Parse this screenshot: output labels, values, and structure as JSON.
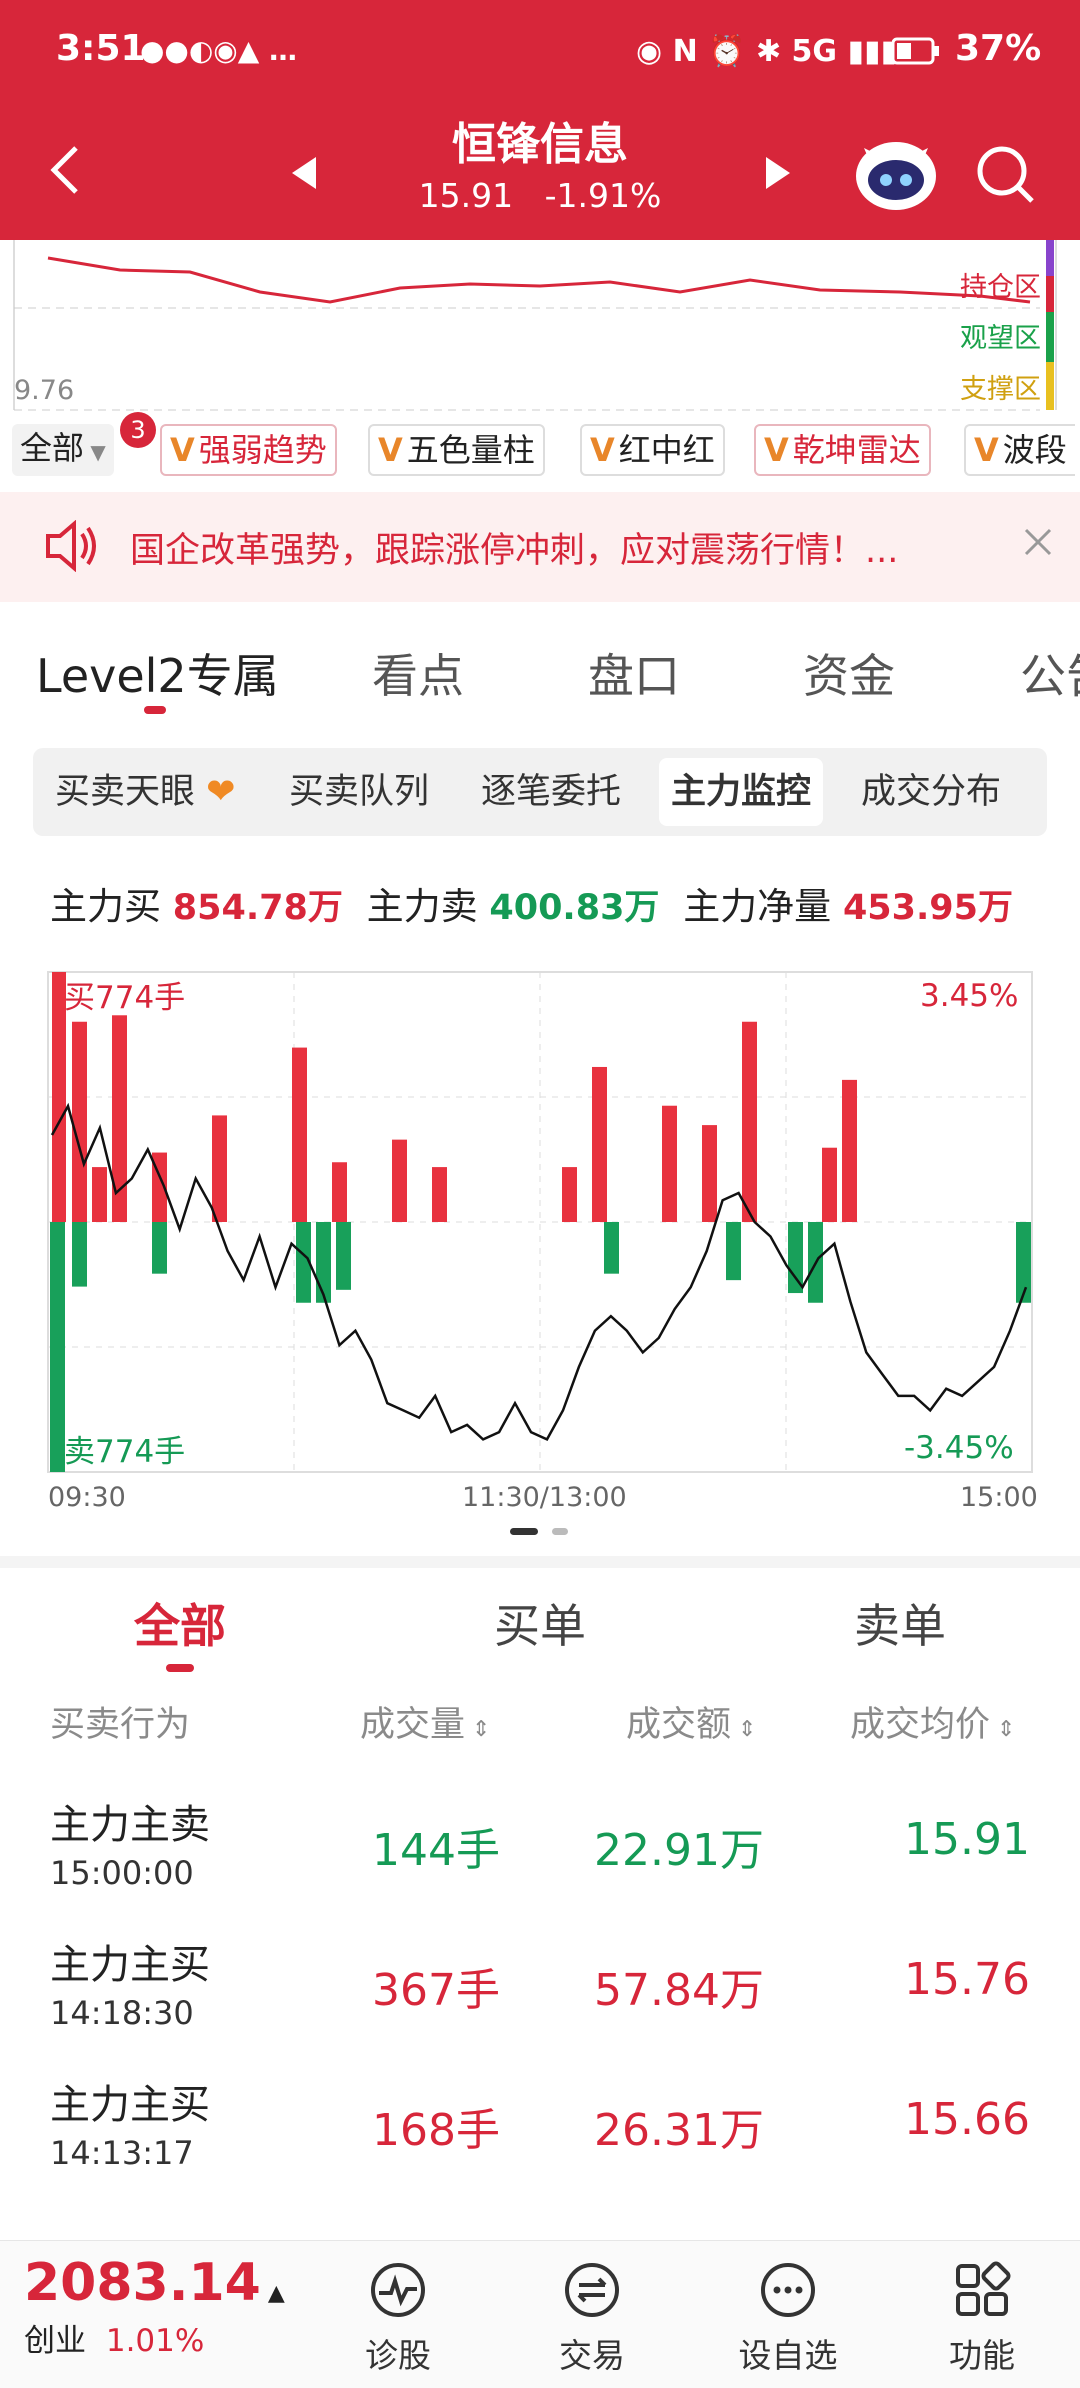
{
  "status_bar": {
    "time": "3:51",
    "battery": "37%"
  },
  "header": {
    "title": "恒锋信息",
    "price": "15.91",
    "change": "-1.91%"
  },
  "top_chart": {
    "low_label": "9.76",
    "zones": [
      "持仓区",
      "观望区",
      "支撑区"
    ]
  },
  "indicators": {
    "all_label": "全部",
    "badge": "3",
    "chips": [
      "强弱趋势",
      "五色量柱",
      "红中红",
      "乾坤雷达",
      "波段"
    ]
  },
  "banner": {
    "text": "国企改革强势，跟踪涨停冲刺，应对震荡行情！..."
  },
  "tabs": [
    "Level2专属",
    "看点",
    "盘口",
    "资金",
    "公告"
  ],
  "segments": [
    "买卖天眼",
    "买卖队列",
    "逐笔委托",
    "主力监控",
    "成交分布"
  ],
  "summary": {
    "buy_label": "主力买",
    "buy_value": "854.78万",
    "sell_label": "主力卖",
    "sell_value": "400.83万",
    "net_label": "主力净量",
    "net_value": "453.95万"
  },
  "chart_data": {
    "type": "bar",
    "x_ticks": [
      "09:30",
      "11:30/13:00",
      "15:00"
    ],
    "bar_scale_label_top": "买774手",
    "bar_scale_label_bottom": "卖774手",
    "line_top_label": "3.45%",
    "line_bottom_label": "-3.45%",
    "buy_bars_lots": [
      774,
      620,
      170,
      640,
      215,
      330,
      540,
      185,
      255,
      170,
      170,
      480,
      360,
      300,
      620,
      230,
      440
    ],
    "sell_bars_lots": [
      -774,
      -200,
      -160,
      -250,
      -250,
      -210,
      -160,
      -180,
      -220,
      -250,
      -180,
      -250
    ],
    "price_line_pct": [
      1.2,
      1.6,
      0.8,
      1.3,
      0.4,
      0.6,
      1.0,
      0.5,
      -0.1,
      0.6,
      0.2,
      -0.4,
      -0.8,
      -0.2,
      -0.9,
      -0.3,
      -0.5,
      -1.0,
      -1.7,
      -1.5,
      -1.9,
      -2.5,
      -2.6,
      -2.7,
      -2.4,
      -2.9,
      -2.8,
      -3.0,
      -2.9,
      -2.5,
      -2.9,
      -3.0,
      -2.6,
      -2.0,
      -1.5,
      -1.3,
      -1.5,
      -1.8,
      -1.6,
      -1.2,
      -0.9,
      -0.4,
      0.3,
      0.4,
      0.0,
      -0.2,
      -0.6,
      -0.9,
      -0.5,
      -0.3,
      -1.1,
      -1.8,
      -2.1,
      -2.4,
      -2.4,
      -2.6,
      -2.3,
      -2.4,
      -2.2,
      -2.0,
      -1.5,
      -0.9
    ]
  },
  "list_tabs": [
    "全部",
    "买单",
    "卖单"
  ],
  "columns": [
    "买卖行为",
    "成交量",
    "成交额",
    "成交均价"
  ],
  "rows": [
    {
      "action": "主力主卖",
      "time": "15:00:00",
      "volume": "144手",
      "amount": "22.91万",
      "avg_price": "15.91",
      "side": "sell"
    },
    {
      "action": "主力主买",
      "time": "14:18:30",
      "volume": "367手",
      "amount": "57.84万",
      "avg_price": "15.76",
      "side": "buy"
    },
    {
      "action": "主力主买",
      "time": "14:13:17",
      "volume": "168手",
      "amount": "26.31万",
      "avg_price": "15.66",
      "side": "buy"
    }
  ],
  "bottom": {
    "index_value": "2083.14",
    "index_name": "创业",
    "index_change": "1.01%",
    "nav": [
      "诊股",
      "交易",
      "设自选",
      "功能"
    ]
  }
}
